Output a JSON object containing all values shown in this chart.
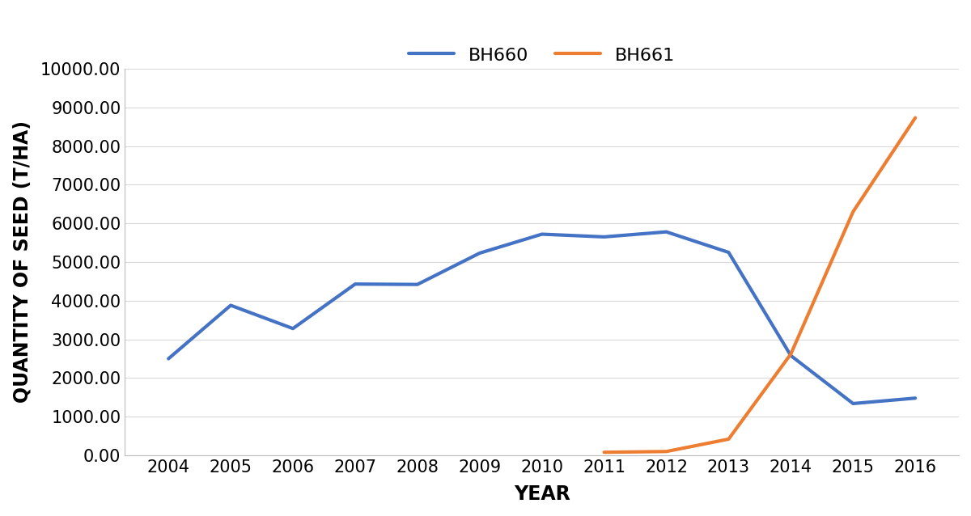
{
  "BH660_years": [
    2004,
    2005,
    2006,
    2007,
    2008,
    2009,
    2010,
    2011,
    2012,
    2013,
    2014,
    2015,
    2016
  ],
  "BH660_values": [
    2500,
    3880,
    3280,
    4430,
    4420,
    5230,
    5720,
    5650,
    5780,
    5250,
    2580,
    1340,
    1480
  ],
  "BH661_years": [
    2011,
    2012,
    2013,
    2014,
    2015,
    2016
  ],
  "BH661_values": [
    80,
    100,
    420,
    2620,
    6300,
    8730
  ],
  "BH660_color": "#4472C4",
  "BH661_color": "#ED7D31",
  "BH660_label": "BH660",
  "BH661_label": "BH661",
  "xlabel": "YEAR",
  "ylabel": "QUANTITY OF SEED (T/HA)",
  "ylim": [
    0,
    10000
  ],
  "ytick_step": 1000,
  "xticks": [
    2004,
    2005,
    2006,
    2007,
    2008,
    2009,
    2010,
    2011,
    2012,
    2013,
    2014,
    2015,
    2016
  ],
  "line_width": 3.0,
  "grid_color": "#D9D9D9",
  "background_color": "#FFFFFF",
  "legend_fontsize": 16,
  "axis_label_fontsize": 17,
  "tick_label_fontsize": 15
}
